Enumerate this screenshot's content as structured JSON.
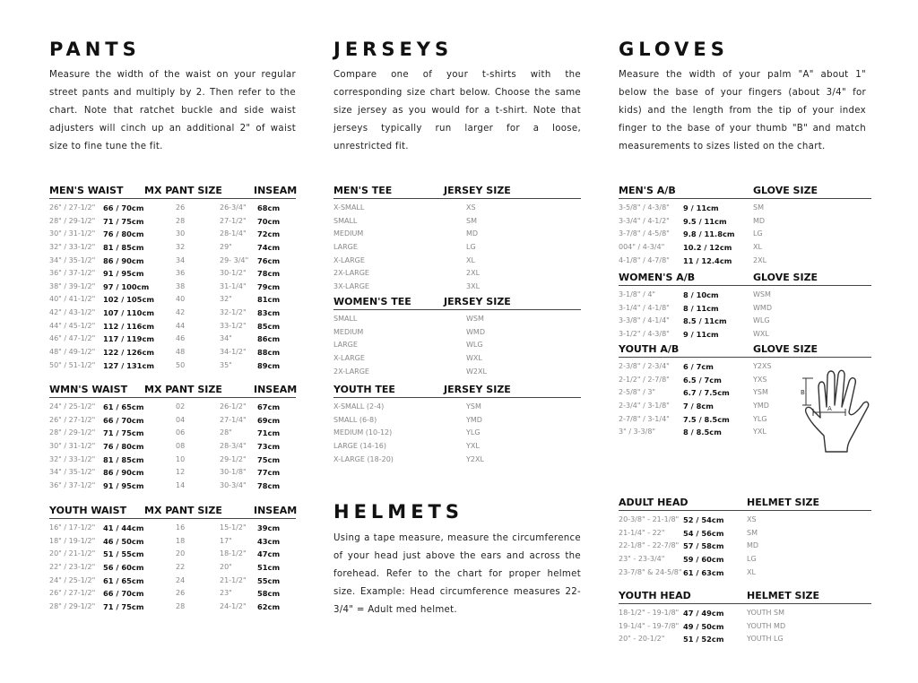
{
  "pants": {
    "title": "PANTS",
    "description": "Measure the width of the waist on your regular street pants and multiply by 2. Then refer to the chart. Note that ratchet buckle and side waist adjusters will cinch up an additional 2\" of waist size to fine tune the fit.",
    "tables": [
      {
        "headers": [
          "MEN'S WAIST",
          "MX PANT SIZE",
          "INSEAM"
        ],
        "rows": [
          [
            "26\" / 27-1/2\"",
            "66 / 70cm",
            "26",
            "26-3/4\"",
            "68cm"
          ],
          [
            "28\" / 29-1/2\"",
            "71 / 75cm",
            "28",
            "27-1/2\"",
            "70cm"
          ],
          [
            "30\" / 31-1/2\"",
            "76 / 80cm",
            "30",
            "28-1/4\"",
            "72cm"
          ],
          [
            "32\" / 33-1/2\"",
            "81 / 85cm",
            "32",
            "29\"",
            "74cm"
          ],
          [
            "34\" / 35-1/2\"",
            "86 / 90cm",
            "34",
            "29- 3/4\"",
            "76cm"
          ],
          [
            "36\" / 37-1/2\"",
            "91 / 95cm",
            "36",
            "30-1/2\"",
            "78cm"
          ],
          [
            "38\" / 39-1/2\"",
            "97 / 100cm",
            "38",
            "31-1/4\"",
            "79cm"
          ],
          [
            "40\" / 41-1/2\"",
            "102 / 105cm",
            "40",
            "32\"",
            "81cm"
          ],
          [
            "42\" / 43-1/2\"",
            "107 / 110cm",
            "42",
            "32-1/2\"",
            "83cm"
          ],
          [
            "44\" / 45-1/2\"",
            "112 / 116cm",
            "44",
            "33-1/2\"",
            "85cm"
          ],
          [
            "46\" / 47-1/2\"",
            "117 / 119cm",
            "46",
            "34\"",
            "86cm"
          ],
          [
            "48\" / 49-1/2\"",
            "122 / 126cm",
            "48",
            "34-1/2\"",
            "88cm"
          ],
          [
            "50\" / 51-1/2\"",
            "127 / 131cm",
            "50",
            "35\"",
            "89cm"
          ]
        ]
      },
      {
        "headers": [
          "WMN'S WAIST",
          "MX PANT SIZE",
          "INSEAM"
        ],
        "rows": [
          [
            "24\" / 25-1/2\"",
            "61 / 65cm",
            "02",
            "26-1/2\"",
            "67cm"
          ],
          [
            "26\" / 27-1/2\"",
            "66 / 70cm",
            "04",
            "27-1/4\"",
            "69cm"
          ],
          [
            "28\" / 29-1/2\"",
            "71 / 75cm",
            "06",
            "28\"",
            "71cm"
          ],
          [
            "30\" / 31-1/2\"",
            "76 / 80cm",
            "08",
            "28-3/4\"",
            "73cm"
          ],
          [
            "32\" / 33-1/2\"",
            "81 / 85cm",
            "10",
            "29-1/2\"",
            "75cm"
          ],
          [
            "34\" / 35-1/2\"",
            "86 / 90cm",
            "12",
            "30-1/8\"",
            "77cm"
          ],
          [
            "36\" / 37-1/2\"",
            "91 / 95cm",
            "14",
            "30-3/4\"",
            "78cm"
          ]
        ]
      },
      {
        "headers": [
          "YOUTH WAIST",
          "MX PANT SIZE",
          "INSEAM"
        ],
        "rows": [
          [
            "16\" / 17-1/2\"",
            "41 / 44cm",
            "16",
            "15-1/2\"",
            "39cm"
          ],
          [
            "18\" / 19-1/2\"",
            "46 / 50cm",
            "18",
            "17\"",
            "43cm"
          ],
          [
            "20\" / 21-1/2\"",
            "51 / 55cm",
            "20",
            "18-1/2\"",
            "47cm"
          ],
          [
            "22\" / 23-1/2\"",
            "56 / 60cm",
            "22",
            "20\"",
            "51cm"
          ],
          [
            "24\" / 25-1/2\"",
            "61 / 65cm",
            "24",
            "21-1/2\"",
            "55cm"
          ],
          [
            "26\" / 27-1/2\"",
            "66 / 70cm",
            "26",
            "23\"",
            "58cm"
          ],
          [
            "28\" / 29-1/2\"",
            "71 / 75cm",
            "28",
            "24-1/2\"",
            "62cm"
          ]
        ]
      }
    ]
  },
  "jerseys": {
    "title": "JERSEYS",
    "description": "Compare one of your t-shirts with the corresponding size chart below. Choose the same size jersey as you would for a t-shirt. Note that jerseys typically run larger for a loose, unrestricted fit.",
    "tables": [
      {
        "headers": [
          "MEN'S TEE",
          "JERSEY SIZE"
        ],
        "rows": [
          [
            "X-SMALL",
            "XS"
          ],
          [
            "SMALL",
            "SM"
          ],
          [
            "MEDIUM",
            "MD"
          ],
          [
            "LARGE",
            "LG"
          ],
          [
            "X-LARGE",
            "XL"
          ],
          [
            "2X-LARGE",
            "2XL"
          ],
          [
            "3X-LARGE",
            "3XL"
          ]
        ]
      },
      {
        "headers": [
          "WOMEN'S TEE",
          "JERSEY SIZE"
        ],
        "rows": [
          [
            "SMALL",
            "WSM"
          ],
          [
            "MEDIUM",
            "WMD"
          ],
          [
            "LARGE",
            "WLG"
          ],
          [
            "X-LARGE",
            "WXL"
          ],
          [
            "2X-LARGE",
            "W2XL"
          ]
        ]
      },
      {
        "headers": [
          "YOUTH TEE",
          "JERSEY SIZE"
        ],
        "rows": [
          [
            "X-SMALL (2-4)",
            "YSM"
          ],
          [
            "SMALL (6-8)",
            "YMD"
          ],
          [
            "MEDIUM (10-12)",
            "YLG"
          ],
          [
            "LARGE (14-16)",
            "YXL"
          ],
          [
            "X-LARGE (18-20)",
            "Y2XL"
          ]
        ]
      }
    ]
  },
  "helmets": {
    "title": "HELMETS",
    "description": "Using a tape measure, measure the circumference of your head just above the ears and across the forehead. Refer to the chart for proper helmet size. Example: Head circumference measures 22-3/4\" = Adult med helmet.",
    "tables": [
      {
        "headers": [
          "ADULT HEAD",
          "HELMET SIZE"
        ],
        "rows": [
          [
            "20-3/8\" - 21-1/8\"",
            "52 / 54cm",
            "XS"
          ],
          [
            "21-1/4\" - 22\"",
            "54 / 56cm",
            "SM"
          ],
          [
            "22-1/8\" - 22-7/8\"",
            "57 / 58cm",
            "MD"
          ],
          [
            "23\" - 23-3/4\"",
            "59 / 60cm",
            "LG"
          ],
          [
            "23-7/8\" & 24-5/8\"",
            "61 / 63cm",
            "XL"
          ]
        ]
      },
      {
        "headers": [
          "YOUTH HEAD",
          "HELMET SIZE"
        ],
        "rows": [
          [
            "18-1/2\" - 19-1/8\"",
            "47 / 49cm",
            "YOUTH SM"
          ],
          [
            "19-1/4\" - 19-7/8\"",
            "49 / 50cm",
            "YOUTH MD"
          ],
          [
            "20\" - 20-1/2\"",
            "51 / 52cm",
            "YOUTH LG"
          ]
        ]
      }
    ]
  },
  "gloves": {
    "title": "GLOVES",
    "description": "Measure the width of your palm \"A\" about 1\" below the base of your fingers (about 3/4\" for kids) and the length from the tip of your index finger to the base of your thumb \"B\" and match measurements to sizes listed on the chart.",
    "diagram_labels": {
      "a": "A",
      "b": "B"
    },
    "tables": [
      {
        "headers": [
          "MEN'S A/B",
          "GLOVE SIZE"
        ],
        "rows": [
          [
            "3-5/8\" / 4-3/8\"",
            "9 / 11cm",
            "SM"
          ],
          [
            "3-3/4\" / 4-1/2\"",
            "9.5 / 11cm",
            "MD"
          ],
          [
            "3-7/8\" / 4-5/8\"",
            "9.8 / 11.8cm",
            "LG"
          ],
          [
            "004\" / 4-3/4\"",
            "10.2 / 12cm",
            "XL"
          ],
          [
            "4-1/8\" / 4-7/8\"",
            "11 / 12.4cm",
            "2XL"
          ]
        ]
      },
      {
        "headers": [
          "WOMEN'S A/B",
          "GLOVE SIZE"
        ],
        "rows": [
          [
            "3-1/8\" / 4\"",
            "8 / 10cm",
            "WSM"
          ],
          [
            "3-1/4\" / 4-1/8\"",
            "8 / 11cm",
            "WMD"
          ],
          [
            "3-3/8\" / 4-1/4\"",
            "8.5 / 11cm",
            "WLG"
          ],
          [
            "3-1/2\" / 4-3/8\"",
            "9 / 11cm",
            "WXL"
          ]
        ]
      },
      {
        "headers": [
          "YOUTH A/B",
          "GLOVE SIZE"
        ],
        "rows": [
          [
            "2-3/8\" / 2-3/4\"",
            "6 / 7cm",
            "Y2XS"
          ],
          [
            "2-1/2\" / 2-7/8\"",
            "6.5 / 7cm",
            "YXS"
          ],
          [
            "2-5/8\" / 3\"",
            "6.7 / 7.5cm",
            "YSM"
          ],
          [
            "2-3/4\" / 3-1/8\"",
            "7 / 8cm",
            "YMD"
          ],
          [
            "2-7/8\" / 3-1/4\"",
            "7.5 / 8.5cm",
            "YLG"
          ],
          [
            "3\" / 3-3/8\"",
            "8 / 8.5cm",
            "YXL"
          ]
        ]
      }
    ]
  }
}
